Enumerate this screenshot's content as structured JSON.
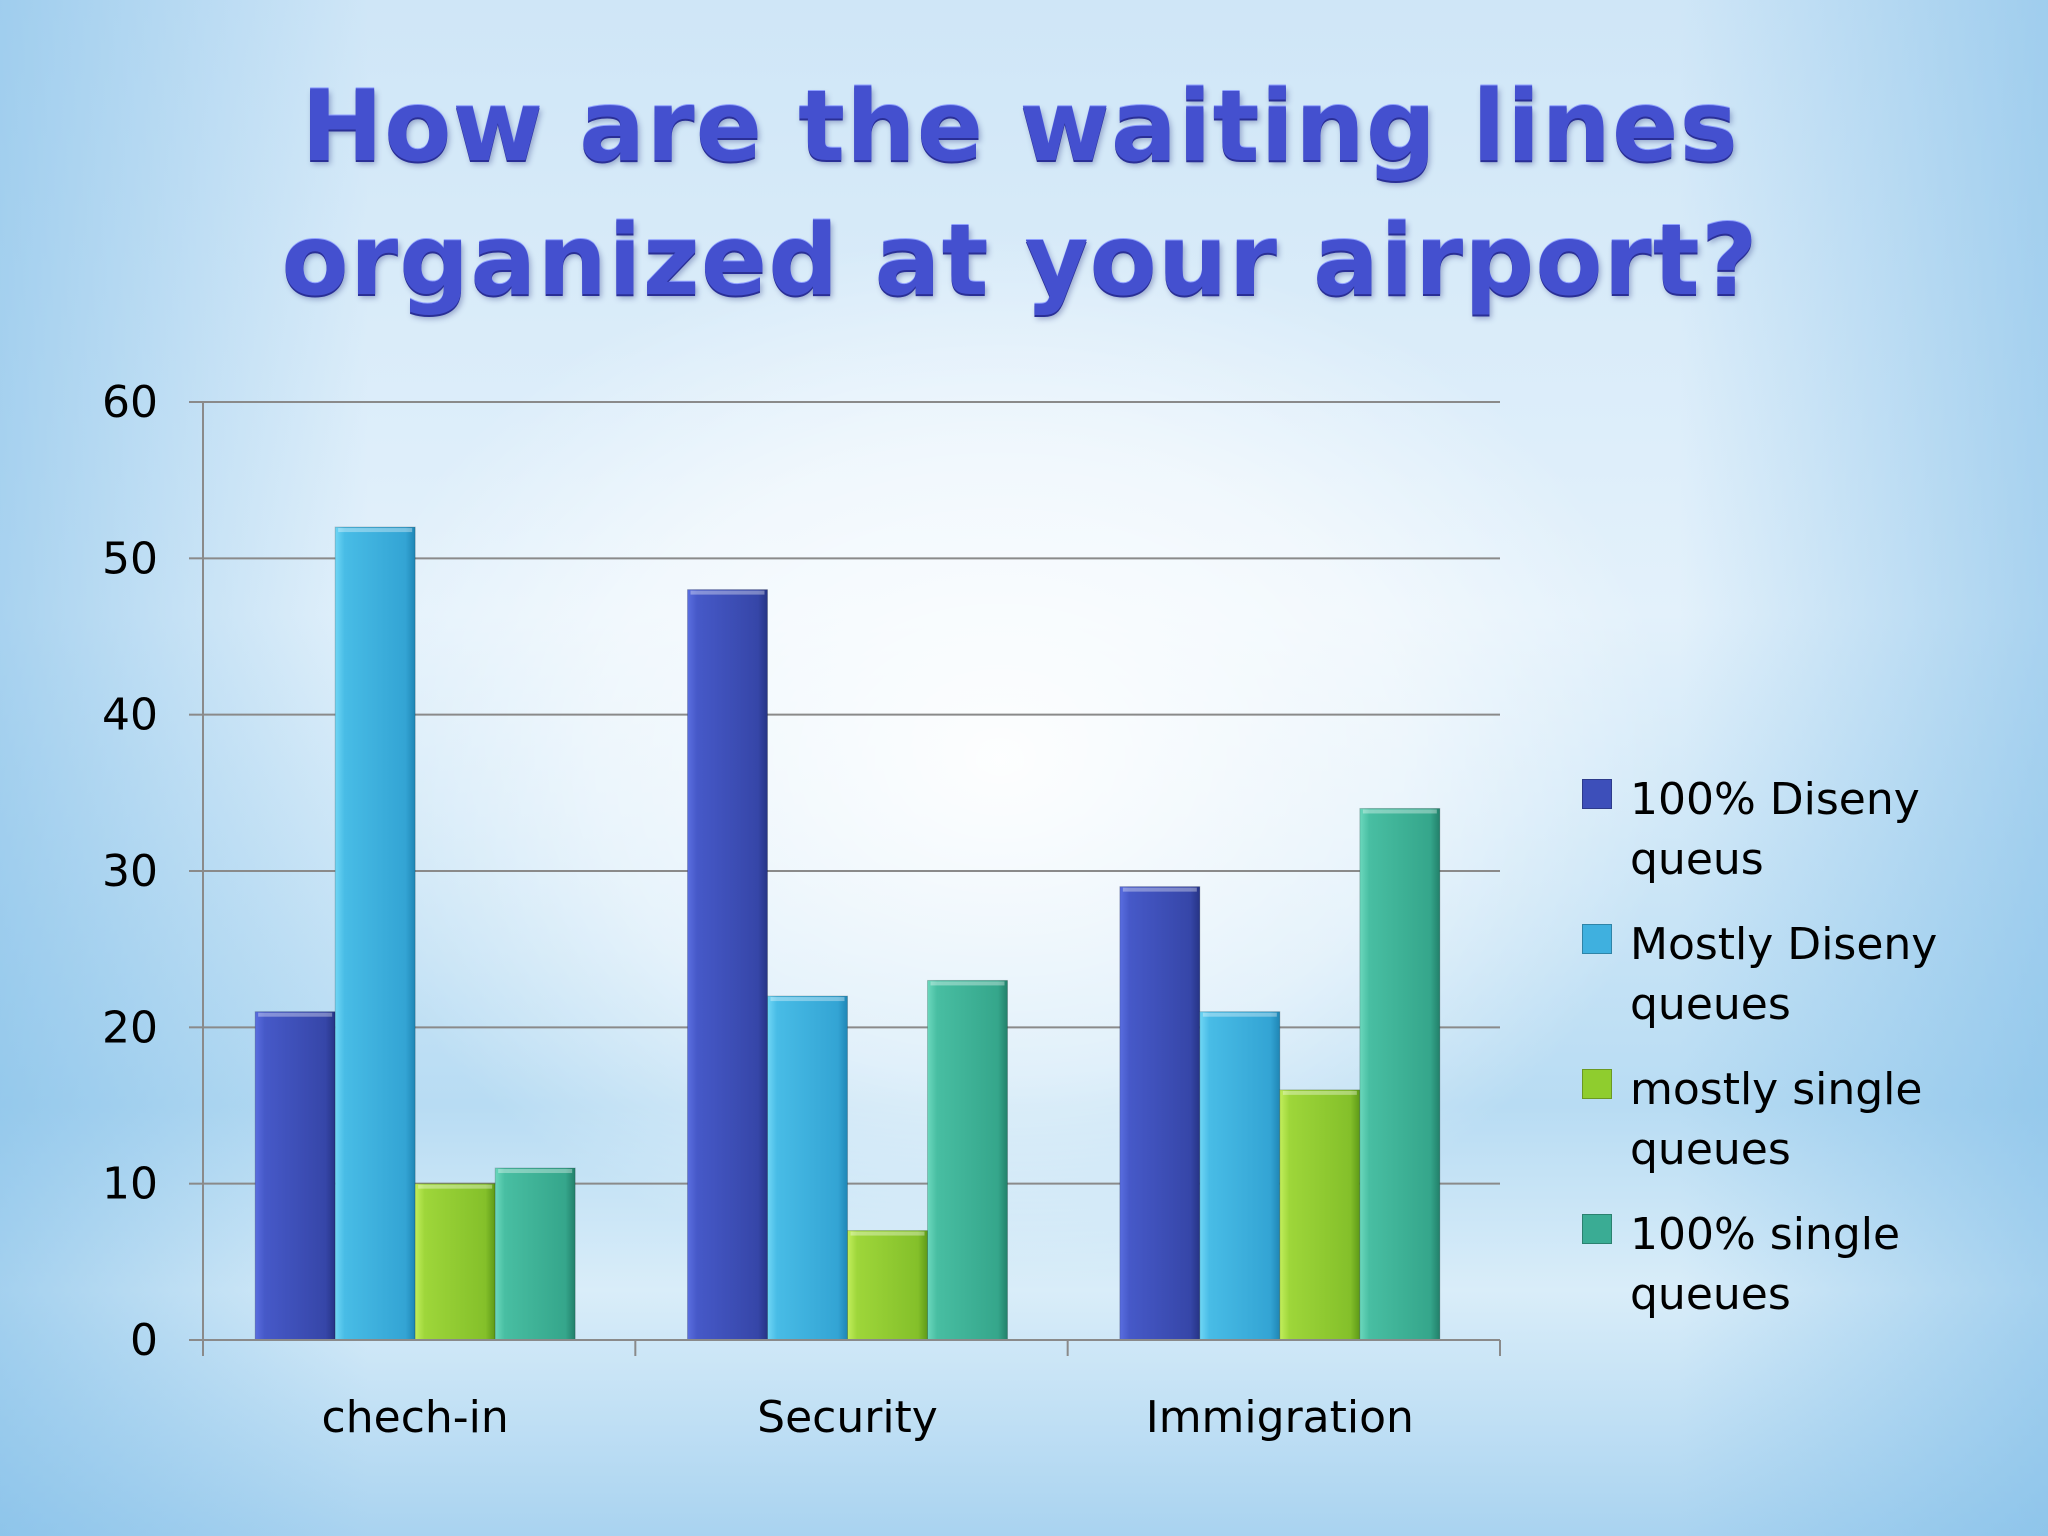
{
  "chart_data": {
    "type": "bar",
    "title": "How are the waiting lines organized at your airport?",
    "categories": [
      "chech-in",
      "Security",
      "Immigration"
    ],
    "series": [
      {
        "name": "100% Diseny queus",
        "values": [
          21,
          48,
          29
        ],
        "color": "#3d4fba"
      },
      {
        "name": "Mostly Diseny queues",
        "values": [
          52,
          22,
          21
        ],
        "color": "#3fb0df"
      },
      {
        "name": "mostly single queues",
        "values": [
          10,
          7,
          16
        ],
        "color": "#8fcd2e"
      },
      {
        "name": "100% single queues",
        "values": [
          11,
          23,
          34
        ],
        "color": "#3aac94"
      }
    ],
    "ylim": [
      0,
      60
    ],
    "yticks": [
      "0",
      "10",
      "20",
      "30",
      "40",
      "50",
      "60"
    ],
    "grid": true,
    "legend_position": "right"
  }
}
